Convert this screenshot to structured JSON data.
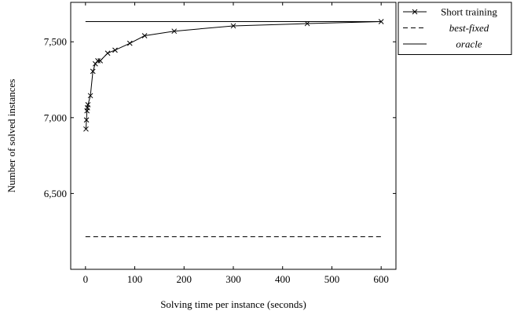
{
  "chart_data": {
    "type": "line",
    "xlabel": "Solving time per instance (seconds)",
    "ylabel": "Number of solved instances",
    "xlim": [
      -30,
      630
    ],
    "ylim": [
      6000,
      7760
    ],
    "x_ticks": [
      0,
      100,
      200,
      300,
      400,
      500,
      600
    ],
    "x_tick_labels": [
      "0",
      "100",
      "200",
      "300",
      "400",
      "500",
      "600"
    ],
    "y_ticks": [
      6500,
      7000,
      7500
    ],
    "y_tick_labels": [
      "6,500",
      "7,000",
      "7,500"
    ],
    "grid": false,
    "legend_position": "top-right",
    "series": [
      {
        "name": "Short training",
        "style": "solid-with-x-markers",
        "color": "#000000",
        "x": [
          1,
          2,
          3,
          4,
          5,
          10,
          15,
          20,
          25,
          30,
          45,
          60,
          90,
          120,
          180,
          300,
          450,
          600
        ],
        "y": [
          6925,
          6985,
          7045,
          7065,
          7085,
          7145,
          7305,
          7355,
          7375,
          7375,
          7425,
          7445,
          7490,
          7540,
          7570,
          7605,
          7620,
          7633
        ]
      },
      {
        "name": "best-fixed",
        "style": "dashed",
        "color": "#000000",
        "x": [
          0,
          600
        ],
        "y": [
          6215,
          6215
        ]
      },
      {
        "name": "oracle",
        "style": "solid",
        "color": "#000000",
        "x": [
          0,
          600
        ],
        "y": [
          7633,
          7633
        ]
      }
    ]
  }
}
